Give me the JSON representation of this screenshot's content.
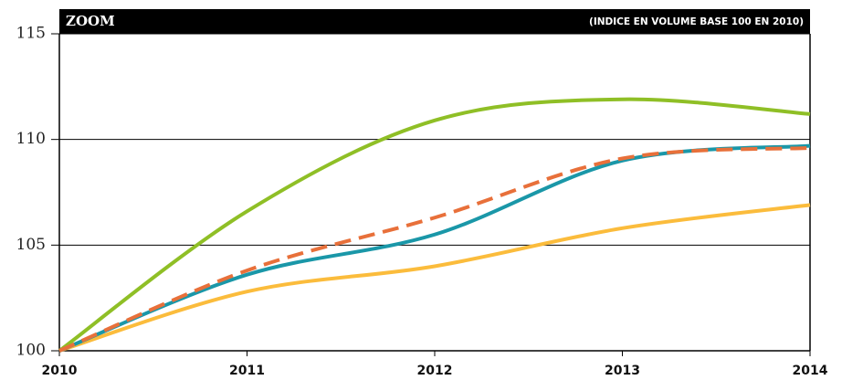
{
  "chart_data": {
    "type": "line",
    "title": "ZOOM",
    "subtitle": "(INDICE EN VOLUME BASE 100 EN 2010)",
    "x": [
      2010,
      2011,
      2012,
      2013,
      2014
    ],
    "series": [
      {
        "color": "#8fbf26",
        "values": [
          100,
          106.6,
          110.9,
          111.9,
          111.2
        ]
      },
      {
        "color": "#fbbc3c",
        "values": [
          100,
          102.8,
          104.0,
          105.8,
          106.9
        ]
      },
      {
        "color": "#1a97a8",
        "values": [
          100,
          103.6,
          105.5,
          109.0,
          109.7
        ]
      },
      {
        "color": "#e8703a",
        "dashed": true,
        "values": [
          100,
          103.8,
          106.3,
          109.1,
          109.6
        ]
      }
    ],
    "xlim": [
      2010,
      2014
    ],
    "xticks": [
      2010,
      2011,
      2012,
      2013,
      2014
    ],
    "ylim": [
      100,
      115
    ],
    "yticks": [
      100,
      105,
      110,
      115
    ],
    "grid": true
  }
}
